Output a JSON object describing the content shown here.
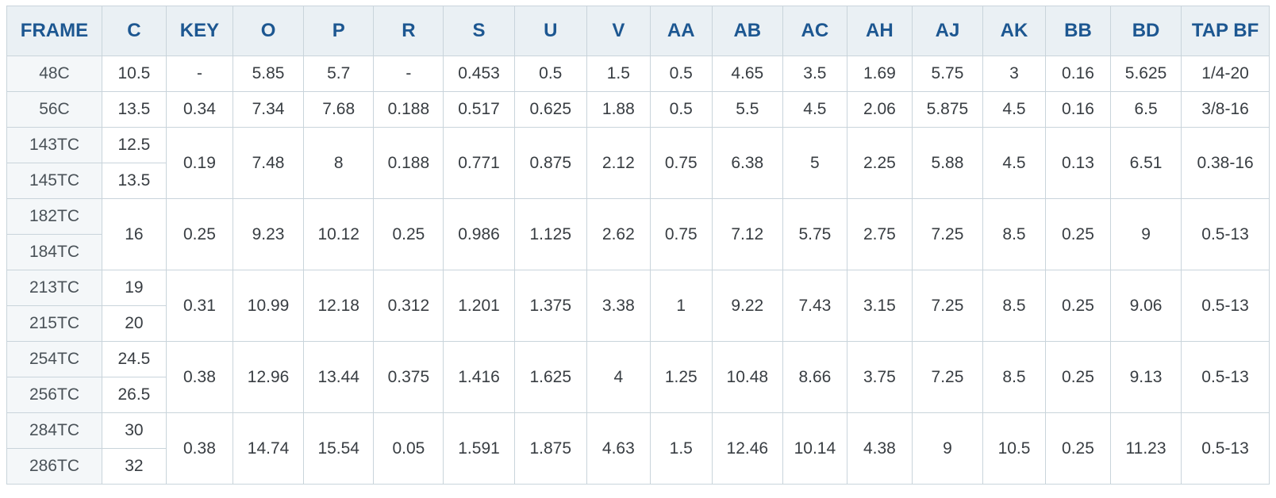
{
  "columns": [
    "FRAME",
    "C",
    "KEY",
    "O",
    "P",
    "R",
    "S",
    "U",
    "V",
    "AA",
    "AB",
    "AC",
    "AH",
    "AJ",
    "AK",
    "BB",
    "BD",
    "TAP BF"
  ],
  "groups": [
    {
      "frames": [
        "48C"
      ],
      "c": [
        "10.5"
      ],
      "shared": [
        "-",
        "5.85",
        "5.7",
        "-",
        "0.453",
        "0.5",
        "1.5",
        "0.5",
        "4.65",
        "3.5",
        "1.69",
        "5.75",
        "3",
        "0.16",
        "5.625",
        "1/4-20"
      ]
    },
    {
      "frames": [
        "56C"
      ],
      "c": [
        "13.5"
      ],
      "shared": [
        "0.34",
        "7.34",
        "7.68",
        "0.188",
        "0.517",
        "0.625",
        "1.88",
        "0.5",
        "5.5",
        "4.5",
        "2.06",
        "5.875",
        "4.5",
        "0.16",
        "6.5",
        "3/8-16"
      ]
    },
    {
      "frames": [
        "143TC",
        "145TC"
      ],
      "c": [
        "12.5",
        "13.5"
      ],
      "shared": [
        "0.19",
        "7.48",
        "8",
        "0.188",
        "0.771",
        "0.875",
        "2.12",
        "0.75",
        "6.38",
        "5",
        "2.25",
        "5.88",
        "4.5",
        "0.13",
        "6.51",
        "0.38-16"
      ]
    },
    {
      "frames": [
        "182TC",
        "184TC"
      ],
      "c": [
        "16"
      ],
      "shared": [
        "0.25",
        "9.23",
        "10.12",
        "0.25",
        "0.986",
        "1.125",
        "2.62",
        "0.75",
        "7.12",
        "5.75",
        "2.75",
        "7.25",
        "8.5",
        "0.25",
        "9",
        "0.5-13"
      ]
    },
    {
      "frames": [
        "213TC",
        "215TC"
      ],
      "c": [
        "19",
        "20"
      ],
      "shared": [
        "0.31",
        "10.99",
        "12.18",
        "0.312",
        "1.201",
        "1.375",
        "3.38",
        "1",
        "9.22",
        "7.43",
        "3.15",
        "7.25",
        "8.5",
        "0.25",
        "9.06",
        "0.5-13"
      ]
    },
    {
      "frames": [
        "254TC",
        "256TC"
      ],
      "c": [
        "24.5",
        "26.5"
      ],
      "shared": [
        "0.38",
        "12.96",
        "13.44",
        "0.375",
        "1.416",
        "1.625",
        "4",
        "1.25",
        "10.48",
        "8.66",
        "3.75",
        "7.25",
        "8.5",
        "0.25",
        "9.13",
        "0.5-13"
      ]
    },
    {
      "frames": [
        "284TC",
        "286TC"
      ],
      "c": [
        "30",
        "32"
      ],
      "shared": [
        "0.38",
        "14.74",
        "15.54",
        "0.05",
        "1.591",
        "1.875",
        "4.63",
        "1.5",
        "12.46",
        "10.14",
        "4.38",
        "9",
        "10.5",
        "0.25",
        "11.23",
        "0.5-13"
      ]
    }
  ]
}
